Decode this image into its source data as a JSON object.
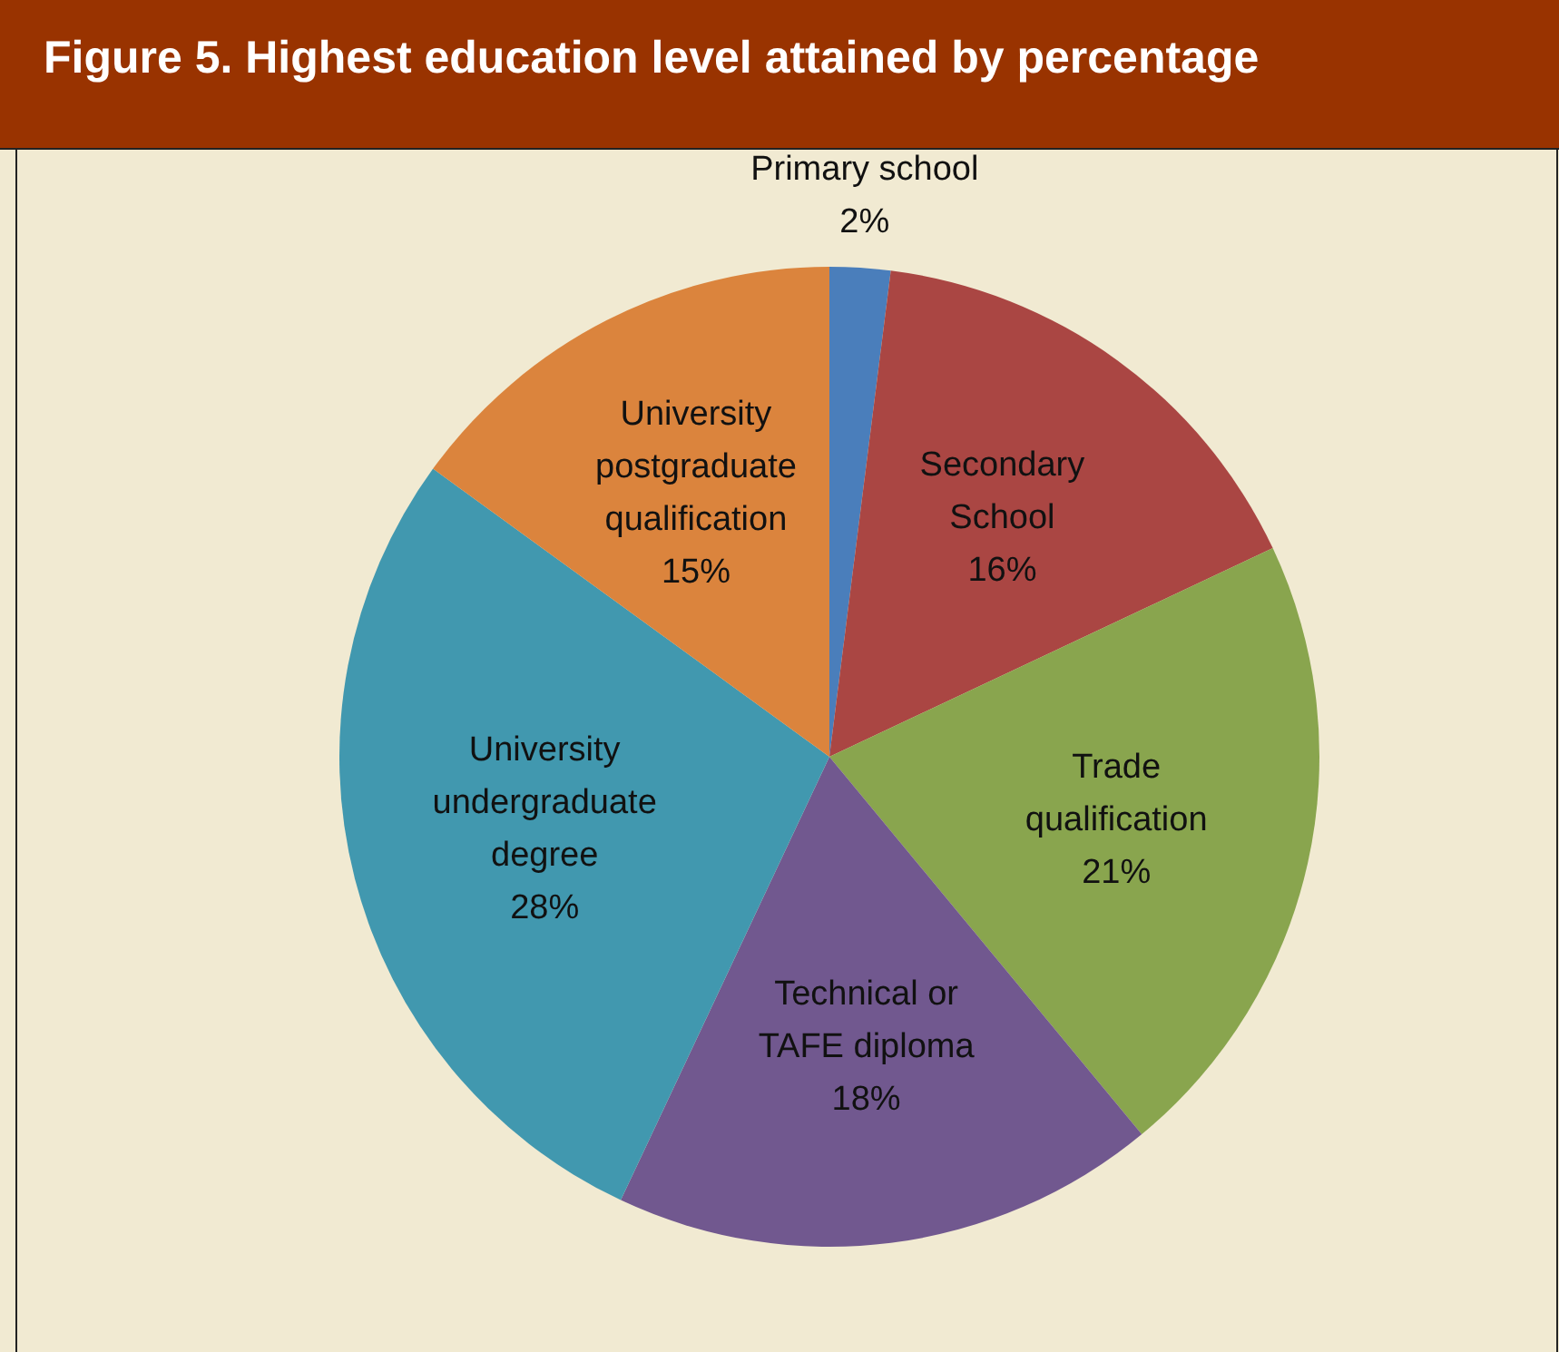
{
  "chart_data": {
    "type": "pie",
    "title": "Figure 5. Highest education level attained by percentage",
    "categories": [
      "Primary school",
      "Secondary School",
      "Trade qualification",
      "Technical or TAFE diploma",
      "University undergraduate degree",
      "University postgraduate qualification"
    ],
    "values": [
      2,
      16,
      21,
      18,
      28,
      15
    ],
    "value_labels": [
      "2%",
      "16%",
      "21%",
      "18%",
      "28%",
      "15%"
    ],
    "colors": [
      "#4a7ebb",
      "#aa4643",
      "#89a54e",
      "#71588f",
      "#4198af",
      "#db843d"
    ]
  }
}
